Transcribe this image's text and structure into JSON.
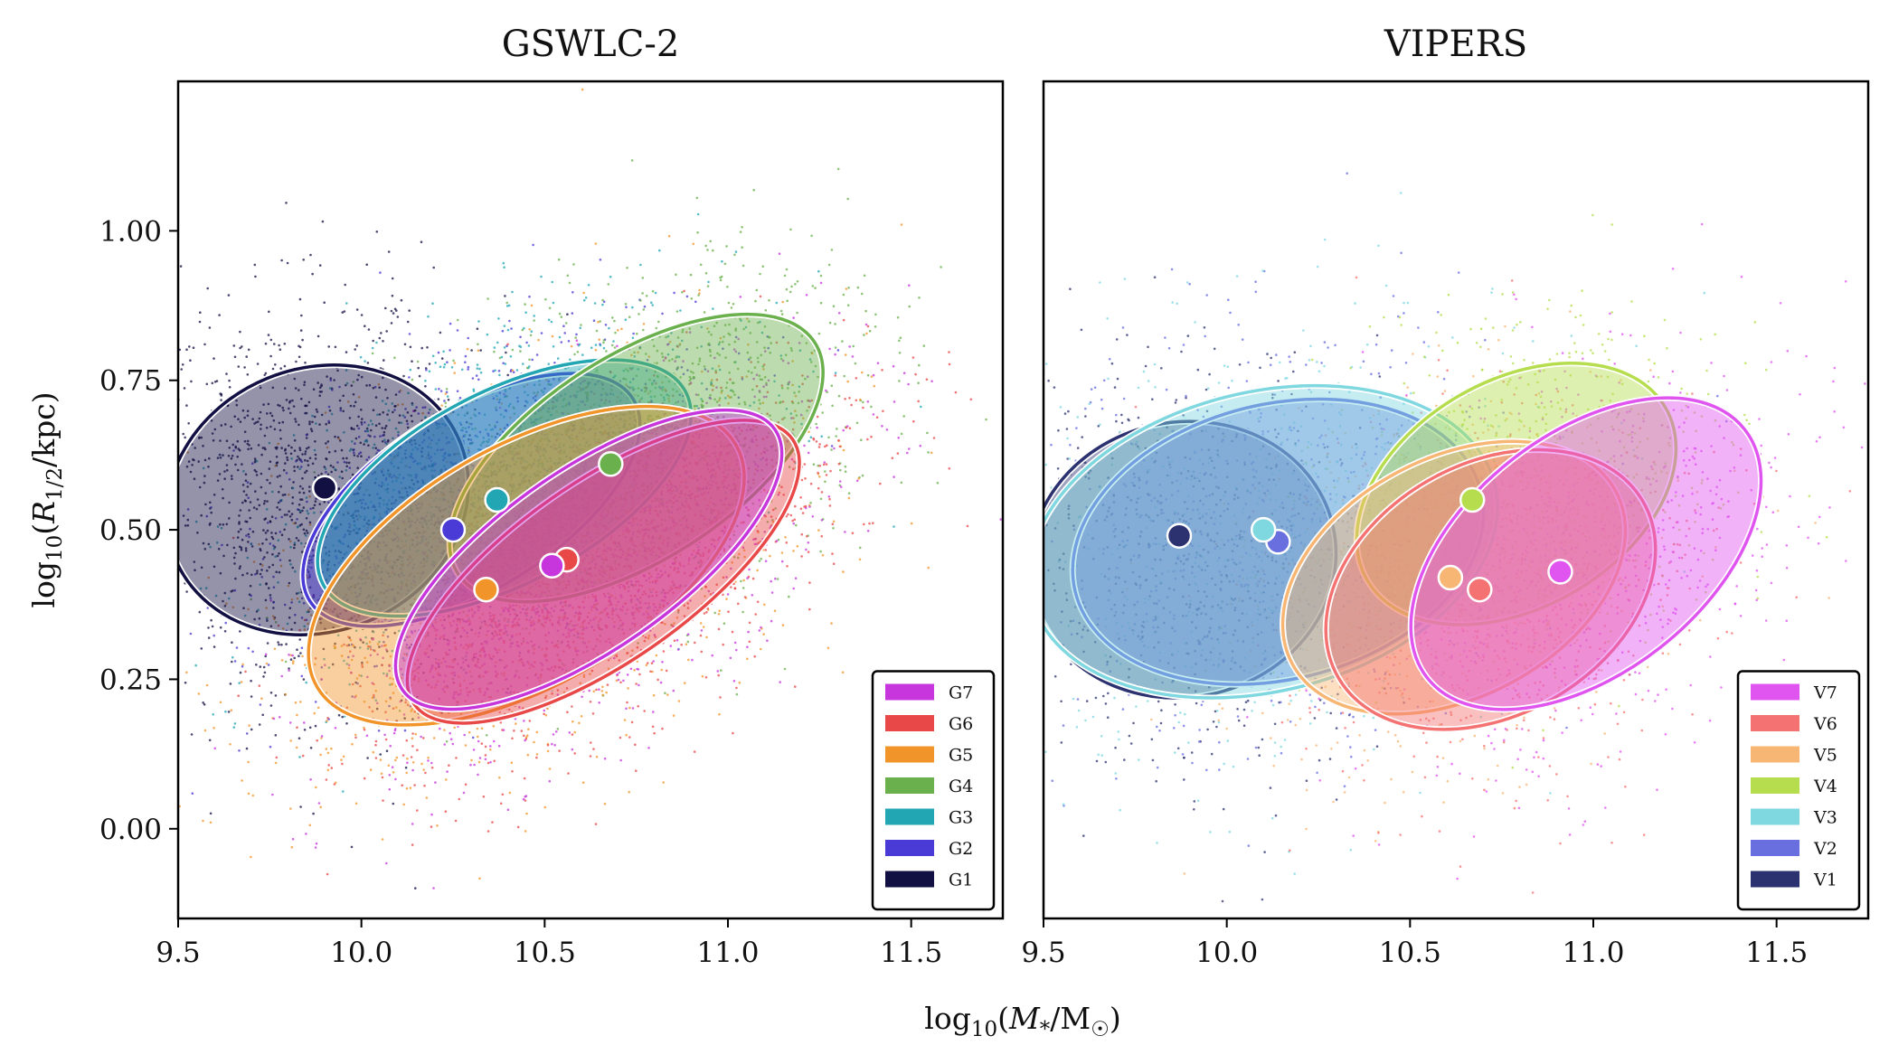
{
  "chart_data": [
    {
      "type": "scatter",
      "title": "GSWLC-2",
      "xlabel_tex": "log10(M*/M☉)",
      "ylabel_tex": "log10(R1/2/kpc)",
      "xlim": [
        9.5,
        11.75
      ],
      "ylim": [
        -0.15,
        1.25
      ],
      "xticks": [
        "9.5",
        "10.0",
        "10.5",
        "11.0",
        "11.5"
      ],
      "yticks": [
        "0.00",
        "0.25",
        "0.50",
        "0.75",
        "1.00"
      ],
      "groups": [
        {
          "name": "G7",
          "color": "#c636dc",
          "median": [
            10.52,
            0.44
          ],
          "cx": 10.62,
          "cy": 0.45,
          "a": 0.62,
          "b": 0.15,
          "angle": 35
        },
        {
          "name": "G6",
          "color": "#e84848",
          "median": [
            10.56,
            0.45
          ],
          "cx": 10.66,
          "cy": 0.43,
          "a": 0.63,
          "b": 0.15,
          "angle": 35
        },
        {
          "name": "G5",
          "color": "#f1952a",
          "median": [
            10.34,
            0.4
          ],
          "cx": 10.45,
          "cy": 0.44,
          "a": 0.66,
          "b": 0.2,
          "angle": 30
        },
        {
          "name": "G4",
          "color": "#6ab04c",
          "median": [
            10.68,
            0.61
          ],
          "cx": 10.75,
          "cy": 0.62,
          "a": 0.58,
          "b": 0.17,
          "angle": 33
        },
        {
          "name": "G3",
          "color": "#22a6b3",
          "median": [
            10.37,
            0.55
          ],
          "cx": 10.39,
          "cy": 0.57,
          "a": 0.56,
          "b": 0.16,
          "angle": 28
        },
        {
          "name": "G2",
          "color": "#4a3ad6",
          "median": [
            10.25,
            0.5
          ],
          "cx": 10.3,
          "cy": 0.55,
          "a": 0.52,
          "b": 0.15,
          "angle": 32
        },
        {
          "name": "G1",
          "color": "#120f42",
          "median": [
            9.9,
            0.57
          ],
          "cx": 9.88,
          "cy": 0.55,
          "a": 0.42,
          "b": 0.22,
          "angle": 22
        }
      ]
    },
    {
      "type": "scatter",
      "title": "VIPERS",
      "xlabel_tex": "log10(M*/M☉)",
      "xlim": [
        9.5,
        11.75
      ],
      "ylim": [
        -0.15,
        1.25
      ],
      "xticks": [
        "9.5",
        "10.0",
        "10.5",
        "11.0",
        "11.5"
      ],
      "groups": [
        {
          "name": "V7",
          "color": "#e055f0",
          "median": [
            10.91,
            0.43
          ],
          "cx": 10.98,
          "cy": 0.46,
          "a": 0.55,
          "b": 0.2,
          "angle": 38
        },
        {
          "name": "V6",
          "color": "#f57272",
          "median": [
            10.69,
            0.4
          ],
          "cx": 10.72,
          "cy": 0.4,
          "a": 0.48,
          "b": 0.21,
          "angle": 30
        },
        {
          "name": "V5",
          "color": "#f8b674",
          "median": [
            10.61,
            0.42
          ],
          "cx": 10.62,
          "cy": 0.42,
          "a": 0.5,
          "b": 0.2,
          "angle": 28
        },
        {
          "name": "V4",
          "color": "#b5dd4d",
          "median": [
            10.67,
            0.55
          ],
          "cx": 10.79,
          "cy": 0.56,
          "a": 0.47,
          "b": 0.19,
          "angle": 30
        },
        {
          "name": "V3",
          "color": "#7fd7e0",
          "median": [
            10.1,
            0.5
          ],
          "cx": 10.1,
          "cy": 0.48,
          "a": 0.65,
          "b": 0.25,
          "angle": 14
        },
        {
          "name": "V2",
          "color": "#6a6fe0",
          "median": [
            10.14,
            0.48
          ],
          "cx": 10.14,
          "cy": 0.48,
          "a": 0.57,
          "b": 0.23,
          "angle": 14
        },
        {
          "name": "V1",
          "color": "#2c3170",
          "median": [
            9.87,
            0.49
          ],
          "cx": 9.88,
          "cy": 0.45,
          "a": 0.42,
          "b": 0.23,
          "angle": 12
        }
      ]
    }
  ]
}
